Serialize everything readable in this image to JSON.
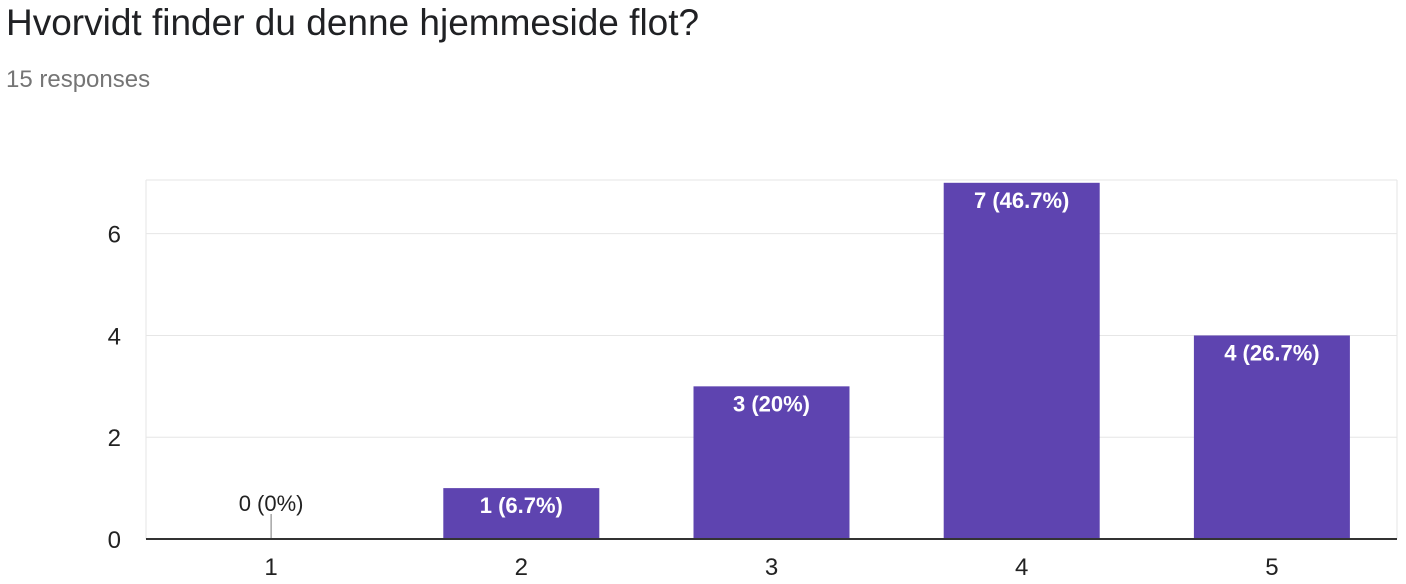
{
  "header": {
    "question": "Hvorvidt finder du denne hjemmeside flot?",
    "responses": "15 responses"
  },
  "chart_data": {
    "type": "bar",
    "categories": [
      "1",
      "2",
      "3",
      "4",
      "5"
    ],
    "values": [
      0,
      1,
      3,
      7,
      4
    ],
    "data_labels": [
      "0 (0%)",
      "1 (6.7%)",
      "3 (20%)",
      "7 (46.7%)",
      "4 (26.7%)"
    ],
    "y_ticks": [
      0,
      2,
      4,
      6
    ],
    "ylim": [
      0,
      7
    ],
    "grid": true,
    "legend": "none",
    "bar_color": "#5e44b0"
  }
}
